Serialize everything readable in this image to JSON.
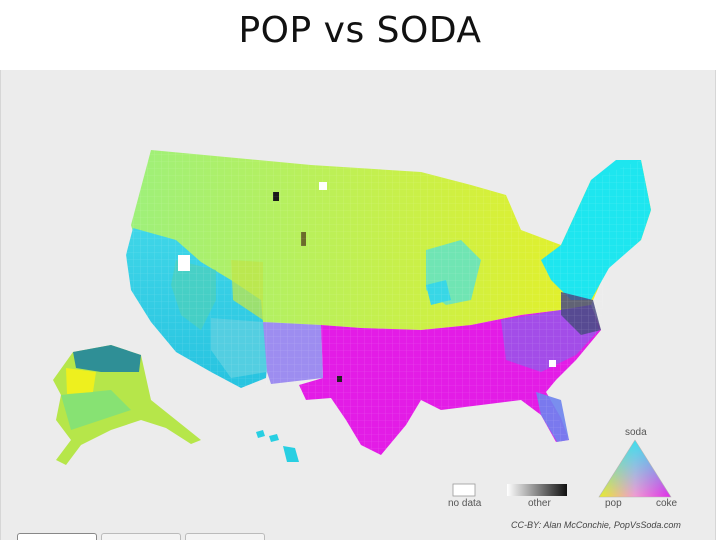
{
  "title": "POP vs SODA",
  "legend": {
    "no_data_label": "no data",
    "other_label": "other",
    "pop_label": "pop",
    "coke_label": "coke",
    "soda_label": "soda"
  },
  "credit": "CC-BY: Alan McConchie, PopVsSoda.com",
  "colors": {
    "soda": "#19e5ee",
    "pop": "#e6ee1e",
    "coke": "#e51de6",
    "other": "#1a1a1a",
    "no_data": "#ffffff",
    "background": "#ececec"
  },
  "tabs": [
    "",
    "",
    ""
  ]
}
